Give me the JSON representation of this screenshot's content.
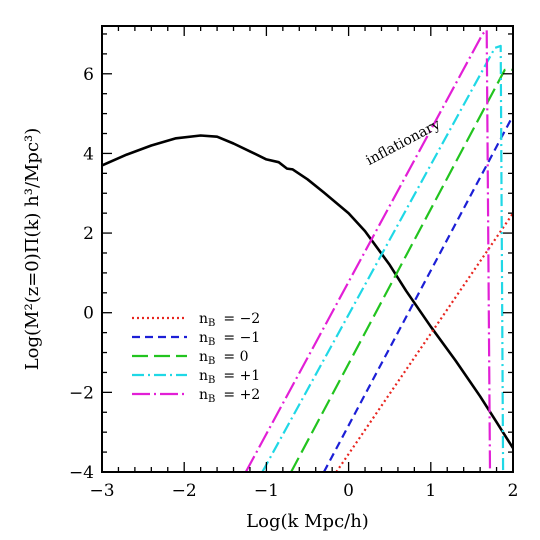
{
  "chart_data": {
    "type": "line",
    "xlabel": "Log(k Mpc/h)",
    "ylabel": "Log(M²(z=0)Π(k)  h³/Mpc³)",
    "xlim": [
      -3,
      2
    ],
    "ylim": [
      -4,
      7.2
    ],
    "x_ticks": [
      -3,
      -2,
      -1,
      0,
      1,
      2
    ],
    "x_tick_labels": [
      "−3",
      "−2",
      "−1",
      "0",
      "1",
      "2"
    ],
    "y_ticks": [
      -4,
      -2,
      0,
      2,
      4,
      6
    ],
    "y_tick_labels": [
      "−4",
      "−2",
      "0",
      "2",
      "4",
      "6"
    ],
    "grid": false,
    "legend_position": "lower-left",
    "annotation": {
      "text": "inflationary",
      "x": 0.25,
      "y": 3.7,
      "angle": -42
    },
    "series": [
      {
        "name": "inflationary",
        "label": "",
        "color": "#000000",
        "dash": "solid",
        "points": [
          [
            -3.0,
            3.7
          ],
          [
            -2.7,
            3.97
          ],
          [
            -2.4,
            4.2
          ],
          [
            -2.1,
            4.38
          ],
          [
            -1.8,
            4.45
          ],
          [
            -1.6,
            4.42
          ],
          [
            -1.4,
            4.25
          ],
          [
            -1.2,
            4.05
          ],
          [
            -1.0,
            3.85
          ],
          [
            -0.85,
            3.78
          ],
          [
            -0.75,
            3.62
          ],
          [
            -0.68,
            3.6
          ],
          [
            -0.5,
            3.35
          ],
          [
            -0.3,
            3.02
          ],
          [
            0.0,
            2.5
          ],
          [
            0.2,
            2.05
          ],
          [
            0.5,
            1.2
          ],
          [
            0.7,
            0.55
          ],
          [
            1.0,
            -0.35
          ],
          [
            1.3,
            -1.2
          ],
          [
            1.6,
            -2.1
          ],
          [
            1.8,
            -2.75
          ],
          [
            2.0,
            -3.4
          ]
        ]
      },
      {
        "name": "nB=-2",
        "label": "n",
        "sub": "B",
        "value": "= −2",
        "color": "#e8251f",
        "dash": "2 3",
        "points": [
          [
            -0.15,
            -4.0
          ],
          [
            2.0,
            2.5
          ]
        ]
      },
      {
        "name": "nB=-1",
        "label": "n",
        "sub": "B",
        "value": "= −1",
        "color": "#1c1fd6",
        "dash": "8 5",
        "points": [
          [
            -0.3,
            -4.0
          ],
          [
            2.0,
            4.95
          ]
        ]
      },
      {
        "name": "nB=0",
        "label": "n",
        "sub": "B",
        "value": "= 0",
        "color": "#22c41f",
        "dash": "16 6",
        "points": [
          [
            -0.7,
            -4.0
          ],
          [
            1.9,
            6.1
          ],
          [
            2.0,
            6.1
          ]
        ]
      },
      {
        "name": "nB=+1",
        "label": "n",
        "sub": "B",
        "value": "= +1",
        "color": "#1fd8e6",
        "dash": "12 4 2 4",
        "points": [
          [
            -1.05,
            -4.0
          ],
          [
            1.78,
            6.65
          ],
          [
            1.85,
            6.7
          ],
          [
            1.88,
            -4.0
          ]
        ]
      },
      {
        "name": "nB=+2",
        "label": "n",
        "sub": "B",
        "value": "= +2",
        "color": "#e21fd6",
        "dash": "18 4 2 4",
        "points": [
          [
            -1.25,
            -4.0
          ],
          [
            1.63,
            7.0
          ],
          [
            1.68,
            7.1
          ],
          [
            1.72,
            -4.0
          ]
        ]
      }
    ]
  }
}
